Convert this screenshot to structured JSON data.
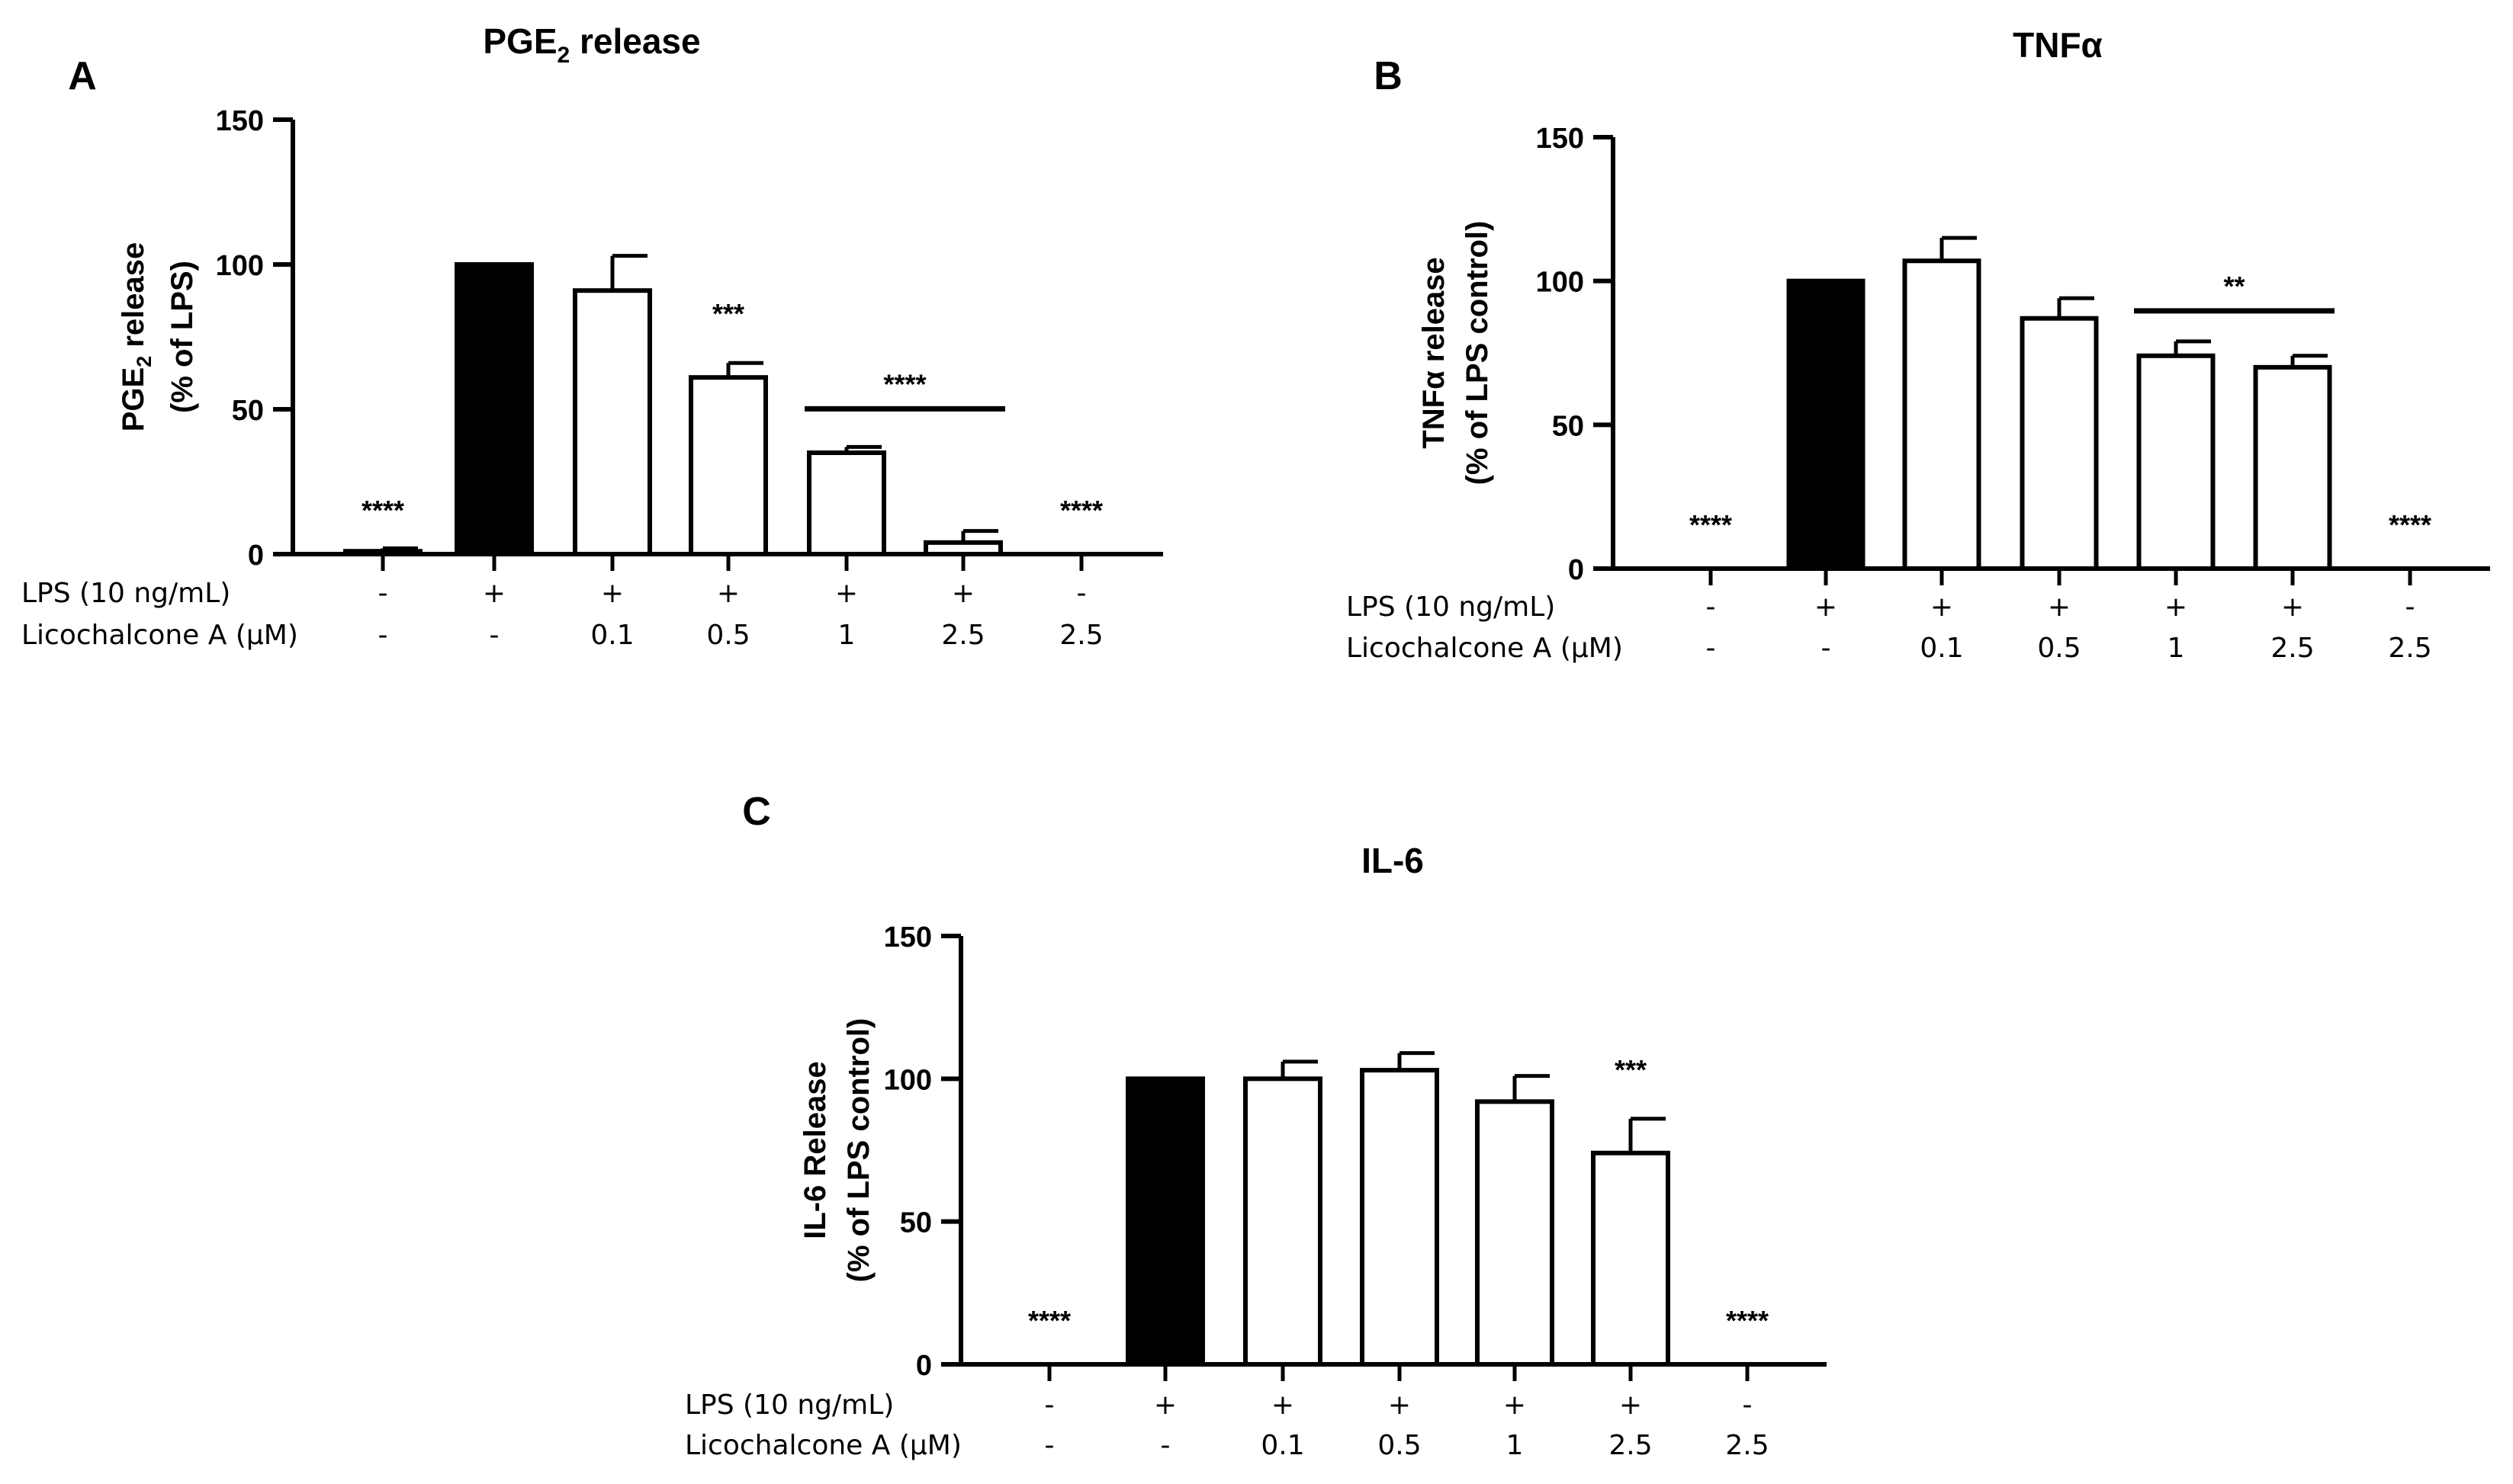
{
  "row_labels": {
    "lps": "LPS (10 ng/mL)",
    "licochalcone": "Licochalcone A (μM)"
  },
  "conditions": {
    "lps": [
      "-",
      "+",
      "+",
      "+",
      "+",
      "+",
      "-"
    ],
    "licochalcone": [
      "-",
      "-",
      "0.1",
      "0.5",
      "1",
      "2.5",
      "2.5"
    ]
  },
  "colors": {
    "control_bar": "#000000",
    "treatment_bar": "#ffffff",
    "stroke": "#000000"
  },
  "chart_data": [
    {
      "panel": "A",
      "type": "bar",
      "title": "PGE2 release",
      "title_main": "PGE",
      "title_sub": "2",
      "title_rest": " release",
      "ylabel_line1": "PGE2 release",
      "ylabel_line1_main": "PGE",
      "ylabel_line1_sub": "2",
      "ylabel_line1_rest": " release",
      "ylabel_line2": "(% of LPS)",
      "ylim": [
        0,
        150
      ],
      "yticks": [
        "0",
        "50",
        "100",
        "150"
      ],
      "categories": [
        "LPS-/Lico -",
        "LPS+/Lico -",
        "LPS+/Lico 0.1",
        "LPS+/Lico 0.5",
        "LPS+/Lico 1",
        "LPS+/Lico 2.5",
        "LPS-/Lico 2.5"
      ],
      "values": [
        1,
        100,
        91,
        61,
        35,
        4,
        0
      ],
      "errors": [
        1,
        0,
        12,
        5,
        2,
        4,
        0
      ],
      "significance": [
        "****",
        "",
        "",
        "***",
        "",
        "",
        "****"
      ],
      "bracket": {
        "from": 4,
        "to": 5,
        "label": "****"
      }
    },
    {
      "panel": "B",
      "type": "bar",
      "title": "TNFα",
      "ylabel_line1": "TNFα release",
      "ylabel_line2": "(% of LPS control)",
      "ylim": [
        0,
        150
      ],
      "yticks": [
        "0",
        "50",
        "100",
        "150"
      ],
      "categories": [
        "LPS-/Lico -",
        "LPS+/Lico -",
        "LPS+/Lico 0.1",
        "LPS+/Lico 0.5",
        "LPS+/Lico 1",
        "LPS+/Lico 2.5",
        "LPS-/Lico 2.5"
      ],
      "values": [
        0,
        100,
        107,
        87,
        74,
        70,
        0
      ],
      "errors": [
        0,
        0,
        8,
        7,
        5,
        4,
        0
      ],
      "significance": [
        "****",
        "",
        "",
        "",
        "",
        "",
        "****"
      ],
      "bracket": {
        "from": 4,
        "to": 5,
        "label": "**"
      }
    },
    {
      "panel": "C",
      "type": "bar",
      "title": "IL-6",
      "ylabel_line1": "IL-6 Release",
      "ylabel_line2": "(% of LPS control)",
      "ylim": [
        0,
        150
      ],
      "yticks": [
        "0",
        "50",
        "100",
        "150"
      ],
      "categories": [
        "LPS-/Lico -",
        "LPS+/Lico -",
        "LPS+/Lico 0.1",
        "LPS+/Lico 0.5",
        "LPS+/Lico 1",
        "LPS+/Lico 2.5",
        "LPS-/Lico 2.5"
      ],
      "values": [
        0,
        100,
        100,
        103,
        92,
        74,
        0
      ],
      "errors": [
        0,
        0,
        6,
        6,
        9,
        12,
        0
      ],
      "significance": [
        "****",
        "",
        "",
        "",
        "",
        "***",
        "****"
      ],
      "bracket": null
    }
  ]
}
